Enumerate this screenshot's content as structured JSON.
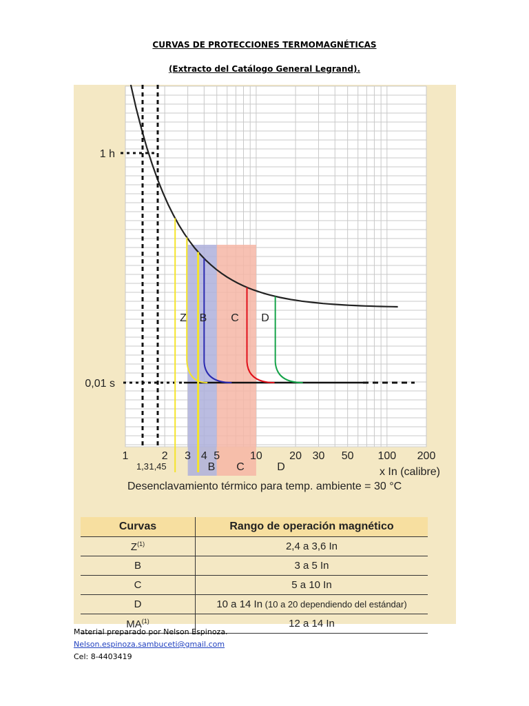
{
  "header": {
    "title": "CURVAS DE PROTECCIONES TERMOMAGNÉTICAS",
    "subtitle": "(Extracto del Catálogo General Legrand)."
  },
  "chart_data": {
    "type": "line",
    "y_labels": {
      "top": "1 h",
      "bottom": "0,01 s"
    },
    "x_ticks": [
      "1",
      "2",
      "3",
      "4",
      "5",
      "10",
      "20",
      "30",
      "50",
      "100",
      "200"
    ],
    "x_tick_values": [
      1,
      2,
      3,
      4,
      5,
      10,
      20,
      30,
      50,
      100,
      200
    ],
    "x_sub_ticks": [
      "1,3",
      "1,45"
    ],
    "x_sub_tick_values": [
      1.3,
      1.45
    ],
    "xlabel": "x In (calibre)",
    "x_scale": "log",
    "xlim": [
      1,
      200
    ],
    "series": [
      {
        "name": "Z",
        "color": "#f5e42a",
        "range": [
          2.4,
          3.6
        ]
      },
      {
        "name": "B",
        "color": "#2a2ab0",
        "range": [
          3,
          5
        ]
      },
      {
        "name": "C",
        "color": "#e0101a",
        "range": [
          5,
          10
        ]
      },
      {
        "name": "D",
        "color": "#16a34a",
        "range": [
          10,
          14
        ]
      }
    ],
    "band_labels": [
      "B",
      "C",
      "D"
    ],
    "bands": [
      {
        "label": "B",
        "from": 3,
        "to": 5,
        "color": "#aeb0dc"
      },
      {
        "label": "C",
        "from": 5,
        "to": 10,
        "color": "#f6b6a6"
      }
    ],
    "thermal_curve_color": "#222222"
  },
  "caption": "Desenclavamiento térmico para temp. ambiente = 30 °C",
  "table": {
    "headers": [
      "Curvas",
      "Rango de operación magnético"
    ],
    "rows": [
      {
        "curve": "Z",
        "sup": "(1)",
        "range": "2,4 a 3,6 In",
        "note": ""
      },
      {
        "curve": "B",
        "sup": "",
        "range": "3 a 5 In",
        "note": ""
      },
      {
        "curve": "C",
        "sup": "",
        "range": "5 a 10 In",
        "note": ""
      },
      {
        "curve": "D",
        "sup": "",
        "range": "10 a 14 In",
        "note": " (10 a 20 dependiendo del estándar)"
      },
      {
        "curve": "MA",
        "sup": "(1)",
        "range": "12 a 14 In",
        "note": ""
      }
    ]
  },
  "footer": {
    "author": "Material preparado por Nelson Espinoza.",
    "email": "Nelson.espinoza.sambuceti@gmail.com",
    "phone": "Cel: 8-4403419"
  }
}
